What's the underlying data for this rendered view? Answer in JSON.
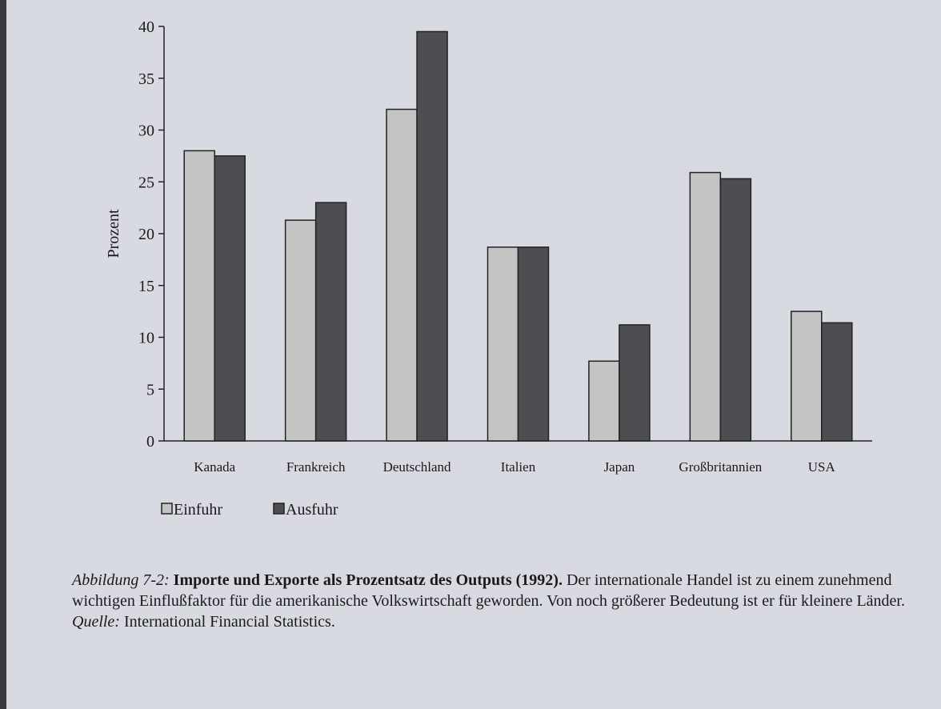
{
  "chart_data": {
    "type": "bar",
    "y_label": "Prozent",
    "categories": [
      "Kanada",
      "Frankreich",
      "Deutschland",
      "Italien",
      "Japan",
      "Großbritannien",
      "USA"
    ],
    "series": [
      {
        "name": "Einfuhr",
        "color": "#c4c4c4",
        "values": [
          28,
          21.3,
          32,
          18.7,
          7.7,
          25.9,
          12.5
        ]
      },
      {
        "name": "Ausfuhr",
        "color": "#4e4e52",
        "values": [
          27.5,
          23,
          39.5,
          18.7,
          11.2,
          25.3,
          11.4
        ]
      }
    ],
    "ylim": [
      0,
      40
    ],
    "yticks": [
      0,
      5,
      10,
      15,
      20,
      25,
      30,
      35,
      40
    ],
    "caption_label": "Abbildung 7-2:",
    "caption_title": "Importe und Exporte als Prozentsatz des Outputs (1992).",
    "caption_text": "Der internationale Handel ist zu einem zunehmend wichtigen Einflußfaktor für die amerikanische Volkswirtschaft geworden. Von noch größerer Bedeutung ist er für kleinere Länder.",
    "source_label": "Quelle:",
    "source": "International Financial Statistics."
  }
}
